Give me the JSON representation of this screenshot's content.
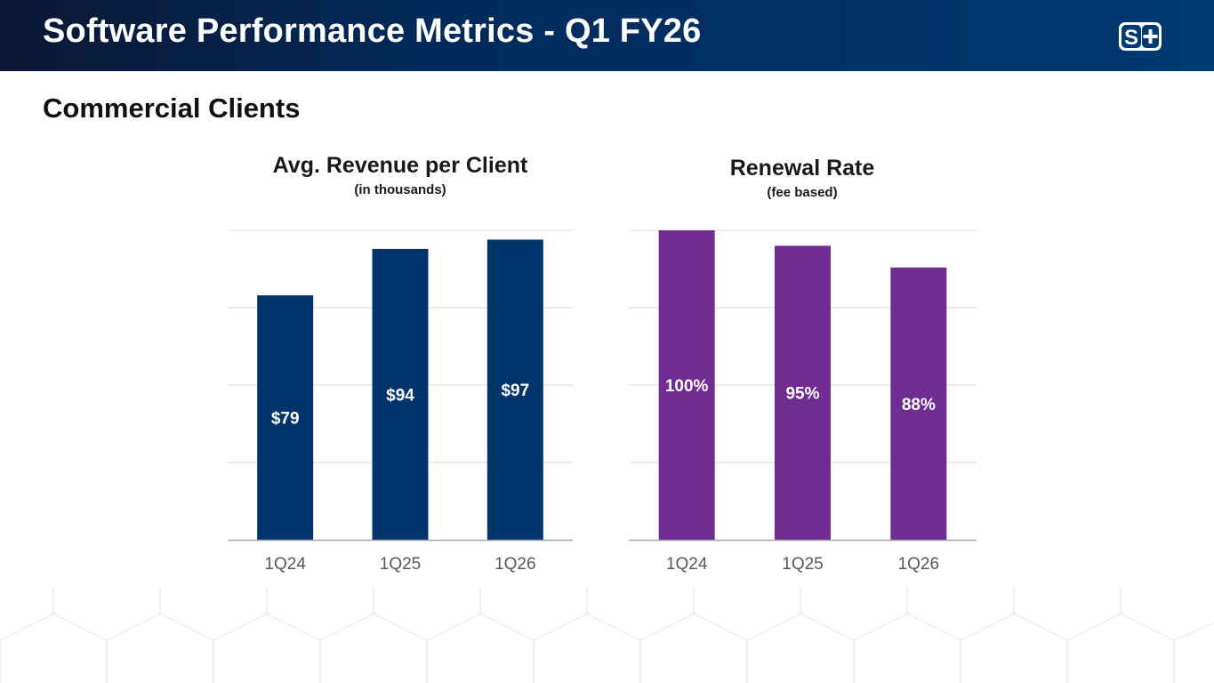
{
  "header": {
    "title": "Software Performance Metrics - Q1 FY26",
    "logo_text": "S+"
  },
  "section_title": "Commercial Clients",
  "colors": {
    "header": "#003a72",
    "revenue_bar": "#00356b",
    "renewal_bar": "#6f2d91",
    "grid": "#d9d9d9",
    "axis": "#a6a6a6"
  },
  "chart_data": [
    {
      "type": "bar",
      "title": "Avg. Revenue per Client",
      "subtitle": "(in thousands)",
      "categories": [
        "1Q24",
        "1Q25",
        "1Q26"
      ],
      "values": [
        79,
        94,
        97
      ],
      "data_labels": [
        "$79",
        "$94",
        "$97"
      ],
      "ylim": [
        0,
        100
      ],
      "grid_step": 25,
      "grid": true,
      "xlabel": "",
      "ylabel": ""
    },
    {
      "type": "bar",
      "title": "Renewal Rate",
      "subtitle": "(fee based)",
      "categories": [
        "1Q24",
        "1Q25",
        "1Q26"
      ],
      "values": [
        100,
        95,
        88
      ],
      "data_labels": [
        "100%",
        "95%",
        "88%"
      ],
      "ylim": [
        0,
        100
      ],
      "grid_step": 25,
      "grid": true,
      "xlabel": "",
      "ylabel": ""
    }
  ]
}
